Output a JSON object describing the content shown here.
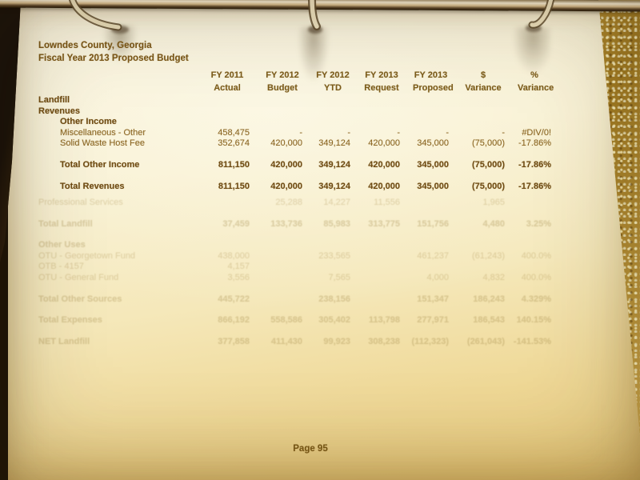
{
  "photo": {
    "description_elements": {
      "binder_rod": "metal-rod",
      "binder_rings": [
        "left-ring",
        "center-ring",
        "right-ring"
      ],
      "binder_edge": "gold-speckled-strip"
    },
    "colors": {
      "paper_top": "#faf4dd",
      "paper_bottom": "#e9cb7c",
      "ink": "#8a6521",
      "ink_bold": "#6f4b12",
      "binder_dark": "#1b1206",
      "binder_gold": "#c7a143"
    }
  },
  "document": {
    "title_line1": "Lowndes County, Georgia",
    "title_line2": "Fiscal Year 2013 Proposed Budget",
    "columns": [
      {
        "line1": "FY 2011",
        "line2": "Actual"
      },
      {
        "line1": "FY 2012",
        "line2": "Budget"
      },
      {
        "line1": "FY 2012",
        "line2": "YTD"
      },
      {
        "line1": "FY 2013",
        "line2": "Request"
      },
      {
        "line1": "FY 2013",
        "line2": "Proposed"
      },
      {
        "line1": "$",
        "line2": "Variance"
      },
      {
        "line1": "%",
        "line2": "Variance"
      }
    ],
    "rows": [
      {
        "label": "Landfill",
        "indent": 0,
        "bold": true,
        "values": [
          "",
          "",
          "",
          "",
          "",
          "",
          ""
        ]
      },
      {
        "label": "Revenues",
        "indent": 0,
        "bold": true,
        "values": [
          "",
          "",
          "",
          "",
          "",
          "",
          ""
        ]
      },
      {
        "label": "Other Income",
        "indent": 1,
        "bold": true,
        "values": [
          "",
          "",
          "",
          "",
          "",
          "",
          ""
        ]
      },
      {
        "label": "Miscellaneous - Other",
        "indent": 1,
        "bold": false,
        "values": [
          "458,475",
          "-",
          "-",
          "-",
          "-",
          "-",
          "#DIV/0!"
        ]
      },
      {
        "label": "Solid Waste Host Fee",
        "indent": 1,
        "bold": false,
        "values": [
          "352,674",
          "420,000",
          "349,124",
          "420,000",
          "345,000",
          "(75,000)",
          "-17.86%"
        ]
      },
      {
        "label": "Total Other Income",
        "indent": 1,
        "bold": true,
        "gap_before": true,
        "values": [
          "811,150",
          "420,000",
          "349,124",
          "420,000",
          "345,000",
          "(75,000)",
          "-17.86%"
        ]
      },
      {
        "label": "Total Revenues",
        "indent": 1,
        "bold": true,
        "gap_before": true,
        "values": [
          "811,150",
          "420,000",
          "349,124",
          "420,000",
          "345,000",
          "(75,000)",
          "-17.86%"
        ]
      }
    ],
    "page_number": "Page 95"
  },
  "bleedthrough_rows": [
    {
      "label": "Professional Services",
      "bold": false,
      "values": [
        "",
        "25,288",
        "14,227",
        "11,556",
        "",
        "1,965",
        ""
      ]
    },
    {
      "label": "Total Landfill",
      "bold": true,
      "gap_before": true,
      "values": [
        "37,459",
        "133,736",
        "85,983",
        "313,775",
        "151,756",
        "4,480",
        "3.25%"
      ]
    },
    {
      "label": "Other Uses",
      "bold": true,
      "gap_before": true,
      "values": [
        "",
        "",
        "",
        "",
        "",
        "",
        ""
      ]
    },
    {
      "label": "OTU - Georgetown Fund",
      "bold": false,
      "values": [
        "438,000",
        "",
        "233,565",
        "",
        "461,237",
        "(61,243)",
        "400.0%"
      ]
    },
    {
      "label": "OTB - 4157",
      "bold": false,
      "values": [
        "4,157",
        "",
        "",
        "",
        "",
        "",
        ""
      ]
    },
    {
      "label": "OTU - General Fund",
      "bold": false,
      "values": [
        "3,556",
        "",
        "7,565",
        "",
        "4,000",
        "4,832",
        "400.0%"
      ]
    },
    {
      "label": "Total Other Sources",
      "bold": true,
      "gap_before": true,
      "values": [
        "445,722",
        "",
        "238,156",
        "",
        "151,347",
        "186,243",
        "4.329%"
      ]
    },
    {
      "label": "Total Expenses",
      "bold": true,
      "gap_before": true,
      "values": [
        "866,192",
        "558,586",
        "305,402",
        "113,798",
        "277,971",
        "186,543",
        "140.15%"
      ]
    },
    {
      "label": "NET Landfill",
      "bold": true,
      "gap_before": true,
      "values": [
        "377,858",
        "411,430",
        "99,923",
        "308,238",
        "(112,323)",
        "(261,043)",
        "-141.53%"
      ]
    }
  ]
}
